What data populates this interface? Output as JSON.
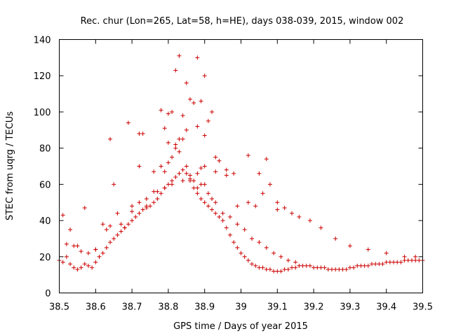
{
  "chart_data": {
    "type": "scatter",
    "title": "Rec. chur (Lon=265, Lat=58, h=HE), days 038-039, 2015, window 002",
    "xlabel": "GPS time / Days of year 2015",
    "ylabel": "STEC from uqrg / TECUs",
    "xlim": [
      38.5,
      39.5
    ],
    "ylim": [
      0,
      140
    ],
    "xticks": [
      "38.5",
      "38.6",
      "38.7",
      "38.8",
      "38.9",
      "39",
      "39.1",
      "39.2",
      "39.3",
      "39.4",
      "39.5"
    ],
    "yticks": [
      "0",
      "20",
      "40",
      "60",
      "80",
      "100",
      "120",
      "140"
    ],
    "grid": false,
    "marker": "+",
    "color": "#cc0000",
    "series": [
      {
        "x": [
          38.5,
          38.51,
          38.52,
          38.53,
          38.54,
          38.55,
          38.56,
          38.57,
          38.58,
          38.59,
          38.6,
          38.61,
          38.62,
          38.63,
          38.64,
          38.65,
          38.66,
          38.67,
          38.68,
          38.69,
          38.7,
          38.71,
          38.72,
          38.73,
          38.74,
          38.75,
          38.76,
          38.77,
          38.78,
          38.79,
          38.8,
          38.81,
          38.82,
          38.83,
          38.84,
          38.85,
          38.86,
          38.87,
          38.88,
          38.89,
          38.9,
          38.91,
          38.92,
          38.93,
          38.94,
          38.95,
          38.96,
          38.97,
          38.98,
          38.99,
          39.0,
          39.01,
          39.02,
          39.03,
          39.04,
          39.05,
          39.06,
          39.07,
          39.08,
          39.09,
          39.1,
          39.11,
          39.12,
          39.13,
          39.14,
          39.15,
          39.16,
          39.17,
          39.18,
          39.19,
          39.2,
          39.21,
          39.22,
          39.23,
          39.24,
          39.25,
          39.26,
          39.27,
          39.28,
          39.29,
          39.3,
          39.31,
          39.32,
          39.33,
          39.34,
          39.35,
          39.36,
          39.37,
          39.38,
          39.39,
          39.4,
          39.41,
          39.42,
          39.43,
          39.44,
          39.45,
          39.46,
          39.47,
          39.48,
          39.49,
          39.5,
          38.51,
          38.53,
          38.55,
          38.57,
          38.6,
          38.62,
          38.64,
          38.66,
          38.68,
          38.7,
          38.72,
          38.74,
          38.76,
          38.78,
          38.79,
          38.8,
          38.81,
          38.82,
          38.83,
          38.84,
          38.85,
          38.86,
          38.87,
          38.88,
          38.89,
          38.9,
          38.91,
          38.92,
          38.93,
          38.95,
          38.97,
          38.99,
          39.01,
          39.03,
          39.05,
          39.07,
          39.09,
          39.11,
          39.13,
          39.15,
          38.64,
          38.69,
          38.72,
          38.73,
          38.76,
          38.78,
          38.79,
          38.8,
          38.8,
          38.81,
          38.82,
          38.82,
          38.83,
          38.83,
          38.84,
          38.85,
          38.85,
          38.86,
          38.87,
          38.88,
          38.88,
          38.89,
          38.89,
          38.9,
          38.9,
          38.91,
          38.92,
          38.93,
          38.94,
          38.96,
          38.98,
          39.02,
          39.05,
          39.07,
          39.1,
          38.52,
          38.54,
          38.56,
          38.58,
          38.6,
          38.63,
          38.65,
          38.67,
          38.7,
          38.72,
          38.74,
          38.77,
          38.79,
          38.81,
          38.84,
          38.86,
          38.88,
          38.9,
          38.93,
          38.96,
          38.99,
          39.02,
          39.04,
          39.06,
          39.08,
          39.1,
          39.12,
          39.14,
          39.16,
          39.19,
          39.22,
          39.26,
          39.3,
          39.35,
          39.4,
          39.45,
          39.48
        ],
        "y": [
          18,
          17,
          20,
          16,
          14,
          13,
          14,
          16,
          15,
          14,
          17,
          20,
          22,
          25,
          28,
          30,
          32,
          34,
          36,
          38,
          40,
          42,
          44,
          46,
          47,
          48,
          50,
          52,
          55,
          58,
          60,
          62,
          64,
          66,
          68,
          66,
          62,
          58,
          55,
          52,
          50,
          48,
          46,
          44,
          42,
          40,
          36,
          32,
          28,
          25,
          22,
          20,
          18,
          16,
          15,
          14,
          14,
          13,
          13,
          12,
          12,
          12,
          13,
          13,
          14,
          14,
          15,
          15,
          15,
          15,
          14,
          14,
          14,
          14,
          13,
          13,
          13,
          13,
          13,
          13,
          14,
          14,
          15,
          15,
          15,
          15,
          16,
          16,
          16,
          16,
          17,
          17,
          17,
          17,
          17,
          18,
          18,
          18,
          18,
          18,
          18,
          43,
          35,
          26,
          47,
          24,
          38,
          37,
          44,
          36,
          48,
          50,
          48,
          56,
          70,
          67,
          72,
          75,
          80,
          78,
          85,
          70,
          65,
          62,
          58,
          60,
          60,
          55,
          52,
          50,
          44,
          42,
          38,
          35,
          30,
          28,
          25,
          22,
          20,
          18,
          17,
          85,
          94,
          88,
          88,
          67,
          101,
          91,
          99,
          83,
          100,
          123,
          82,
          131,
          85,
          98,
          116,
          90,
          107,
          105,
          130,
          92,
          106,
          69,
          120,
          87,
          95,
          100,
          75,
          73,
          68,
          66,
          76,
          66,
          74,
          46,
          27,
          26,
          23,
          22,
          24,
          35,
          60,
          38,
          45,
          70,
          52,
          56,
          58,
          60,
          62,
          63,
          66,
          70,
          67,
          65,
          48,
          50,
          48,
          55,
          60,
          50,
          47,
          44,
          42,
          40,
          36,
          30,
          26,
          24,
          22,
          20,
          20
        ]
      }
    ]
  }
}
